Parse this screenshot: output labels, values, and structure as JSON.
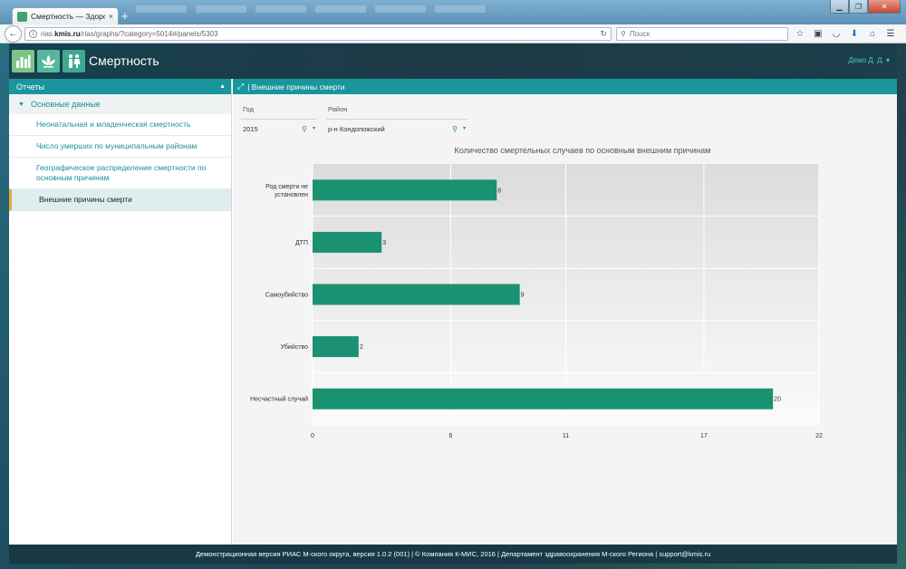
{
  "browser": {
    "tab_title": "Смертность — Здоровье ...",
    "tab_close": "×",
    "new_tab": "+",
    "url_prefix": "rias.",
    "url_host": "kmis.ru",
    "url_path": "/rias/graphs/?category=5014#/panels/5303",
    "search_placeholder": "Поиск"
  },
  "app": {
    "title": "Смертность",
    "user": "Демо Д. Д.",
    "footer": "Демонстрационная версия РИАС М-ского округа, версия 1.0.2 (001) | © Компания К-МИС, 2016 | Департамент здравоохранения М-ского Региона | support@kmis.ru"
  },
  "sidebar": {
    "title": "Отчеты",
    "group": "Основные данные",
    "items": [
      {
        "label": "Неонатальная и младенческая смертность"
      },
      {
        "label": "Число умерших по муниципальным районам"
      },
      {
        "label": "Географическое распределение смертности по основным причинам"
      },
      {
        "label": "Внешние причины смерти"
      }
    ]
  },
  "content": {
    "title": "| Внешние причины смерти"
  },
  "filters": {
    "year": {
      "label": "Год",
      "value": "2015"
    },
    "district": {
      "label": "Район",
      "value": "р-н Кондопожский"
    }
  },
  "colors": {
    "accent": "#19959d",
    "bar": "#1a9170",
    "active_marker": "#e2b22c"
  },
  "chart_data": {
    "type": "bar",
    "orientation": "horizontal",
    "title": "Количество смертельных случаев по основным внешним причинам",
    "categories": [
      "Род смерти не установлен",
      "ДТП",
      "Самоубийство",
      "Убийство",
      "Несчастный случай"
    ],
    "category_lines": [
      [
        "Род смерти не",
        "установлен"
      ],
      [
        "ДТП"
      ],
      [
        "Самоубийство"
      ],
      [
        "Убийство"
      ],
      [
        "Несчастный случай"
      ]
    ],
    "values": [
      8,
      3,
      9,
      2,
      20
    ],
    "xlim": [
      0,
      22
    ],
    "x_ticks": [
      0,
      6,
      11,
      17,
      22
    ],
    "grid": true,
    "xlabel": "",
    "ylabel": ""
  }
}
